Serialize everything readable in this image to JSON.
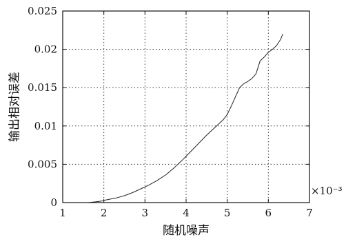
{
  "chart_data": {
    "type": "line",
    "title": "",
    "xlabel": "随机噪声",
    "ylabel": "输出相对误差",
    "x_exponent_label": "×10⁻³",
    "xlim": [
      1,
      7
    ],
    "ylim": [
      0,
      0.025
    ],
    "grid": true,
    "xticks": [
      1,
      2,
      3,
      4,
      5,
      6,
      7
    ],
    "xtick_labels": [
      "1",
      "2",
      "3",
      "4",
      "5",
      "6",
      "7"
    ],
    "yticks": [
      0,
      0.005,
      0.01,
      0.015,
      0.02,
      0.025
    ],
    "ytick_labels": [
      "0",
      "0.005",
      "0.01",
      "0.015",
      "0.02",
      "0.025"
    ],
    "series": [
      {
        "x": [
          1.6,
          1.8,
          1.95,
          2.0,
          2.1,
          2.3,
          2.5,
          2.7,
          2.9,
          3.1,
          3.3,
          3.5,
          3.7,
          3.9,
          4.1,
          4.3,
          4.5,
          4.7,
          4.9,
          5.0,
          5.1,
          5.2,
          5.3,
          5.4,
          5.5,
          5.6,
          5.7,
          5.8,
          5.9,
          6.0,
          6.1,
          6.2,
          6.3,
          6.35
        ],
        "y": [
          0.0,
          0.0001,
          0.0002,
          0.0003,
          0.0004,
          0.0006,
          0.0009,
          0.0013,
          0.0018,
          0.0023,
          0.0029,
          0.0036,
          0.0045,
          0.0055,
          0.0066,
          0.0077,
          0.0088,
          0.0098,
          0.0108,
          0.0115,
          0.0126,
          0.0138,
          0.015,
          0.0155,
          0.0158,
          0.0162,
          0.0168,
          0.0185,
          0.019,
          0.0196,
          0.02,
          0.0205,
          0.0213,
          0.022
        ]
      }
    ]
  }
}
